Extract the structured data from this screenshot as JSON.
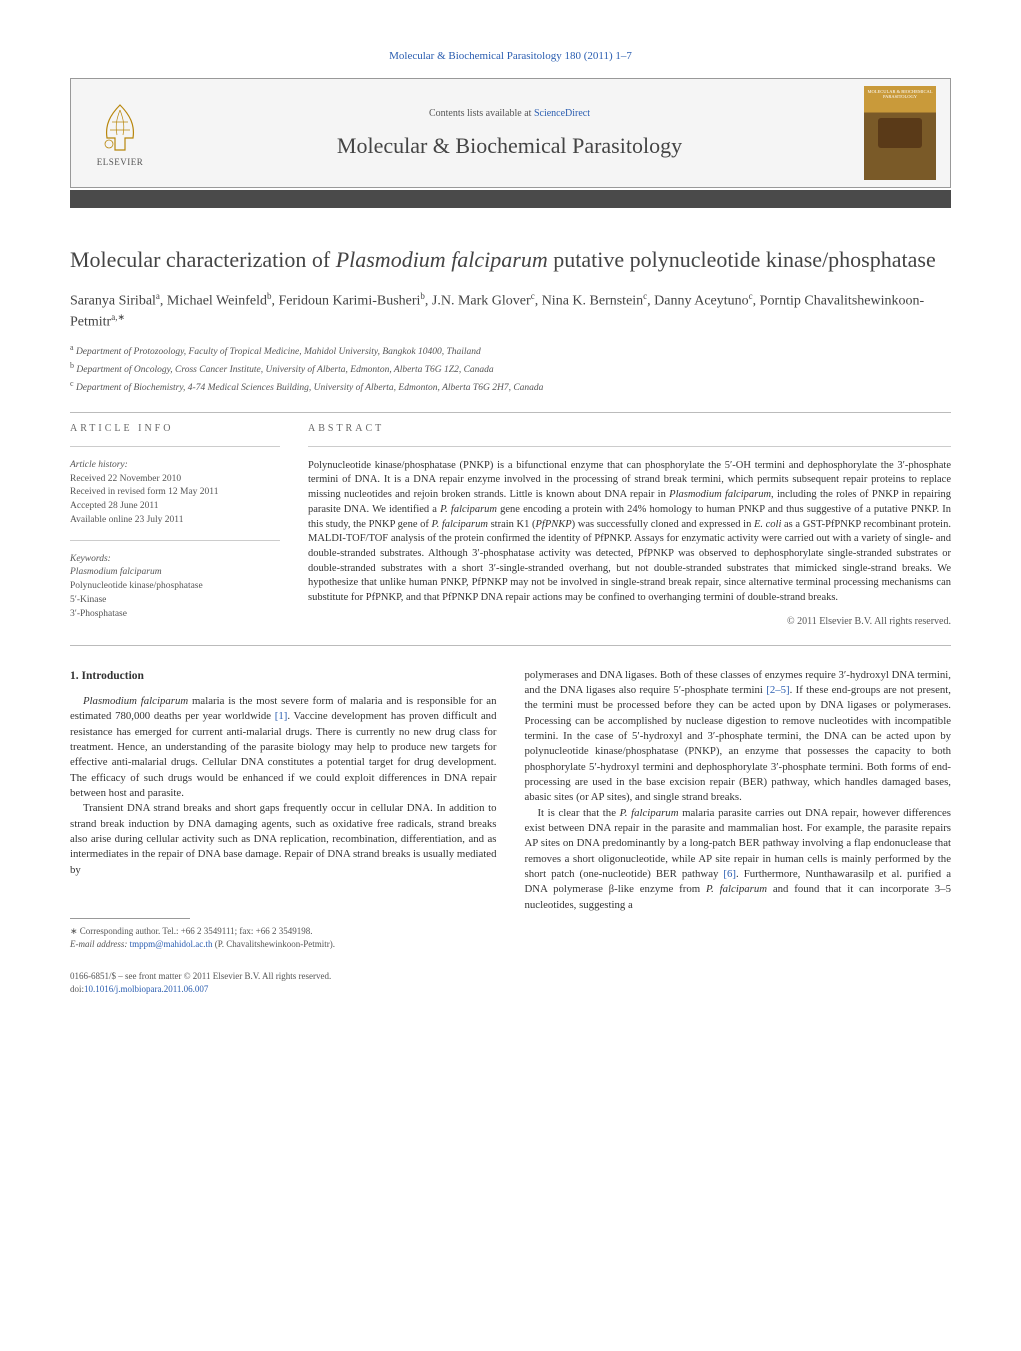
{
  "colors": {
    "link": "#2a5db0",
    "text": "#333333",
    "muted": "#555555",
    "rule": "#bbbbbb",
    "header_bg": "#f5f5f5",
    "darkbar": "#4a4a4a",
    "cover_top": "#c99a3a",
    "cover_bottom": "#7a5a28"
  },
  "journal_header_link": "Molecular & Biochemical Parasitology 180 (2011) 1–7",
  "contents_prefix": "Contents lists available at ",
  "contents_link": "ScienceDirect",
  "journal_title": "Molecular & Biochemical Parasitology",
  "elsevier_label": "ELSEVIER",
  "cover_label": "MOLECULAR & BIOCHEMICAL PARASITOLOGY",
  "article_title_html": "Molecular characterization of <em>Plasmodium falciparum</em> putative polynucleotide kinase/phosphatase",
  "authors_html": "Saranya Siribal<sup>a</sup>, Michael Weinfeld<sup>b</sup>, Feridoun Karimi-Busheri<sup>b</sup>, J.N. Mark Glover<sup>c</sup>, Nina K. Bernstein<sup>c</sup>, Danny Aceytuno<sup>c</sup>, Porntip Chavalitshewinkoon-Petmitr<sup>a,∗</sup>",
  "affiliations": [
    "a Department of Protozoology, Faculty of Tropical Medicine, Mahidol University, Bangkok 10400, Thailand",
    "b Department of Oncology, Cross Cancer Institute, University of Alberta, Edmonton, Alberta T6G 1Z2, Canada",
    "c Department of Biochemistry, 4-74 Medical Sciences Building, University of Alberta, Edmonton, Alberta T6G 2H7, Canada"
  ],
  "article_info_label": "article info",
  "abstract_label": "abstract",
  "history_label": "Article history:",
  "history_lines": [
    "Received 22 November 2010",
    "Received in revised form 12 May 2011",
    "Accepted 28 June 2011",
    "Available online 23 July 2011"
  ],
  "keywords_label": "Keywords:",
  "keywords": [
    "Plasmodium falciparum",
    "Polynucleotide kinase/phosphatase",
    "5′-Kinase",
    "3′-Phosphatase"
  ],
  "abstract_html": "Polynucleotide kinase/phosphatase (PNKP) is a bifunctional enzyme that can phosphorylate the 5′-OH termini and dephosphorylate the 3′-phosphate termini of DNA. It is a DNA repair enzyme involved in the processing of strand break termini, which permits subsequent repair proteins to replace missing nucleotides and rejoin broken strands. Little is known about DNA repair in <em>Plasmodium falciparum</em>, including the roles of PNKP in repairing parasite DNA. We identified a <em>P. falciparum</em> gene encoding a protein with 24% homology to human PNKP and thus suggestive of a putative PNKP. In this study, the PNKP gene of <em>P. falciparum</em> strain K1 (<em>PfPNKP</em>) was successfully cloned and expressed in <em>E. coli</em> as a GST-PfPNKP recombinant protein. MALDI-TOF/TOF analysis of the protein confirmed the identity of PfPNKP. Assays for enzymatic activity were carried out with a variety of single- and double-stranded substrates. Although 3′-phosphatase activity was detected, PfPNKP was observed to dephosphorylate single-stranded substrates or double-stranded substrates with a short 3′-single-stranded overhang, but not double-stranded substrates that mimicked single-strand breaks. We hypothesize that unlike human PNKP, PfPNKP may not be involved in single-strand break repair, since alternative terminal processing mechanisms can substitute for PfPNKP, and that PfPNKP DNA repair actions may be confined to overhanging termini of double-strand breaks.",
  "copyright": "© 2011 Elsevier B.V. All rights reserved.",
  "intro_heading": "1. Introduction",
  "intro_p1_html": "<em>Plasmodium falciparum</em> malaria is the most severe form of malaria and is responsible for an estimated 780,000 deaths per year worldwide <span class=\"ref-link\">[1]</span>. Vaccine development has proven difficult and resistance has emerged for current anti-malarial drugs. There is currently no new drug class for treatment. Hence, an understanding of the parasite biology may help to produce new targets for effective anti-malarial drugs. Cellular DNA constitutes a potential target for drug development. The efficacy of such drugs would be enhanced if we could exploit differences in DNA repair between host and parasite.",
  "intro_p2_html": "Transient DNA strand breaks and short gaps frequently occur in cellular DNA. In addition to strand break induction by DNA damaging agents, such as oxidative free radicals, strand breaks also arise during cellular activity such as DNA replication, recombination, differentiation, and as intermediates in the repair of DNA base damage. Repair of DNA strand breaks is usually mediated by",
  "intro_p3_html": "polymerases and DNA ligases. Both of these classes of enzymes require 3′-hydroxyl DNA termini, and the DNA ligases also require 5′-phosphate termini <span class=\"ref-link\">[2–5]</span>. If these end-groups are not present, the termini must be processed before they can be acted upon by DNA ligases or polymerases. Processing can be accomplished by nuclease digestion to remove nucleotides with incompatible termini. In the case of 5′-hydroxyl and 3′-phosphate termini, the DNA can be acted upon by polynucleotide kinase/phosphatase (PNKP), an enzyme that possesses the capacity to both phosphorylate 5′-hydroxyl termini and dephosphorylate 3′-phosphate termini. Both forms of end-processing are used in the base excision repair (BER) pathway, which handles damaged bases, abasic sites (or AP sites), and single strand breaks.",
  "intro_p4_html": "It is clear that the <em>P. falciparum</em> malaria parasite carries out DNA repair, however differences exist between DNA repair in the parasite and mammalian host. For example, the parasite repairs AP sites on DNA predominantly by a long-patch BER pathway involving a flap endonuclease that removes a short oligonucleotide, while AP site repair in human cells is mainly performed by the short patch (one-nucleotide) BER pathway <span class=\"ref-link\">[6]</span>. Furthermore, Nunthawarasilp et al. purified a DNA polymerase β-like enzyme from <em>P. falciparum</em> and found that it can incorporate 3–5 nucleotides, suggesting a",
  "corr_label": "∗ Corresponding author. Tel.: +66 2 3549111; fax: +66 2 3549198.",
  "corr_email_label": "E-mail address:",
  "corr_email": "tmppm@mahidol.ac.th",
  "corr_name": "(P. Chavalitshewinkoon-Petmitr).",
  "footer_issn": "0166-6851/$ – see front matter © 2011 Elsevier B.V. All rights reserved.",
  "footer_doi_label": "doi:",
  "footer_doi": "10.1016/j.molbiopara.2011.06.007"
}
